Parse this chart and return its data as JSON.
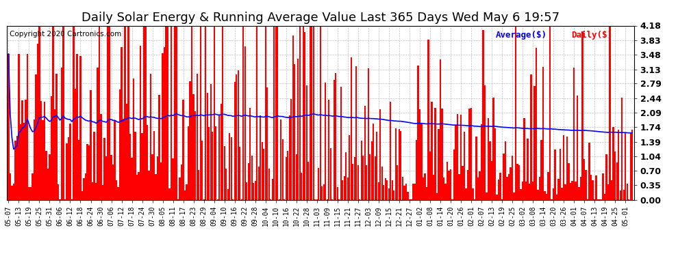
{
  "title": "Daily Solar Energy & Running Average Value Last 365 Days Wed May 6 19:57",
  "copyright": "Copyright 2020 Cartronics.com",
  "legend_average": "Average($)",
  "legend_daily": "Daily($)",
  "bar_color": "#ff0000",
  "average_color": "#0000ff",
  "background_color": "#ffffff",
  "grid_color": "#b0b0b0",
  "ylim": [
    0.0,
    4.18
  ],
  "yticks": [
    0.0,
    0.35,
    0.7,
    1.04,
    1.39,
    1.74,
    2.09,
    2.44,
    2.79,
    3.13,
    3.48,
    3.83,
    4.18
  ],
  "title_fontsize": 13,
  "copyright_fontsize": 7.5,
  "legend_fontsize": 9,
  "tick_fontsize": 7,
  "num_bars": 365,
  "x_labels": [
    "05-07",
    "05-13",
    "05-19",
    "05-25",
    "05-31",
    "06-06",
    "06-12",
    "06-18",
    "06-24",
    "06-30",
    "07-06",
    "07-12",
    "07-18",
    "07-24",
    "07-30",
    "08-05",
    "08-11",
    "08-17",
    "08-23",
    "08-29",
    "09-04",
    "09-10",
    "09-16",
    "09-22",
    "09-28",
    "10-04",
    "10-10",
    "10-16",
    "10-22",
    "10-28",
    "11-03",
    "11-09",
    "11-15",
    "11-21",
    "11-27",
    "12-03",
    "12-09",
    "12-15",
    "12-21",
    "12-27",
    "01-02",
    "01-08",
    "01-14",
    "01-20",
    "01-26",
    "02-01",
    "02-07",
    "02-13",
    "02-19",
    "02-25",
    "03-02",
    "03-08",
    "03-14",
    "03-20",
    "03-26",
    "04-01",
    "04-07",
    "04-13",
    "04-19",
    "04-25",
    "05-01"
  ],
  "x_label_step": 6
}
